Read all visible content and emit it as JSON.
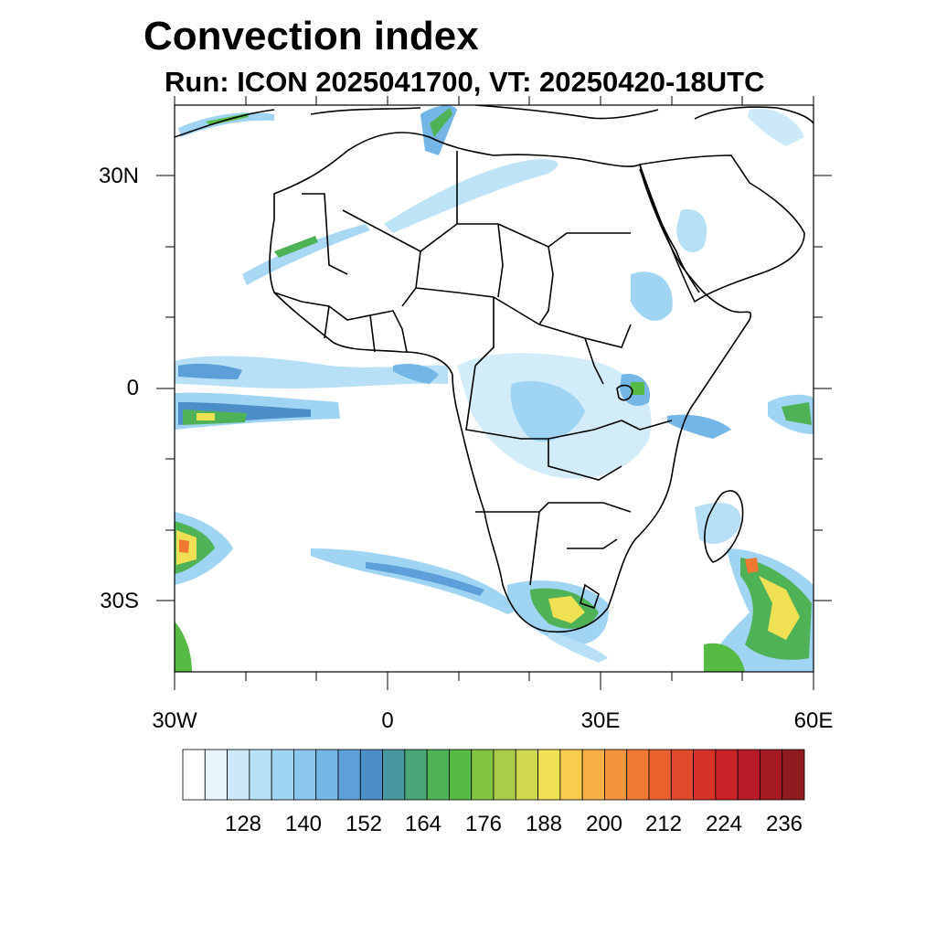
{
  "header": {
    "title": "Convection index",
    "subtitle": "Run: ICON 2025041700,  VT: 20250420-18UTC"
  },
  "axes": {
    "lat_labels": [
      {
        "text": "30N",
        "lat": 30
      },
      {
        "text": "0",
        "lat": 0
      },
      {
        "text": "30S",
        "lat": -30
      }
    ],
    "lon_labels": [
      {
        "text": "30W",
        "lon": -30
      },
      {
        "text": "0",
        "lon": 0
      },
      {
        "text": "30E",
        "lon": 30
      },
      {
        "text": "60E",
        "lon": 60
      }
    ],
    "lon_range": [
      -30,
      60
    ],
    "lat_range": [
      -40,
      40
    ]
  },
  "colorbar": {
    "labels": [
      "128",
      "140",
      "152",
      "164",
      "176",
      "188",
      "200",
      "212",
      "224",
      "236"
    ],
    "colors": [
      "#ffffff",
      "#e6f4fb",
      "#cbe9f8",
      "#b7e0f6",
      "#9fd4f3",
      "#8ac6ee",
      "#74b6e6",
      "#5d9fd8",
      "#4c8fc8",
      "#47979f",
      "#4aa676",
      "#4fb256",
      "#56bb45",
      "#82c341",
      "#a9cd48",
      "#cfd84f",
      "#efe153",
      "#f8cd4e",
      "#f7b046",
      "#f4953d",
      "#f07a34",
      "#e9612d",
      "#e04a2a",
      "#d73227",
      "#c92327",
      "#b71b26",
      "#a51b24",
      "#8e1c1f"
    ]
  },
  "colors": {
    "coastline": "#000000",
    "light_convection": "#b7e0f6",
    "moderate_convection": "#5d9fd8",
    "strong_convection": "#4fb256",
    "very_strong_convection": "#efe153",
    "extreme_convection": "#e9612d"
  }
}
